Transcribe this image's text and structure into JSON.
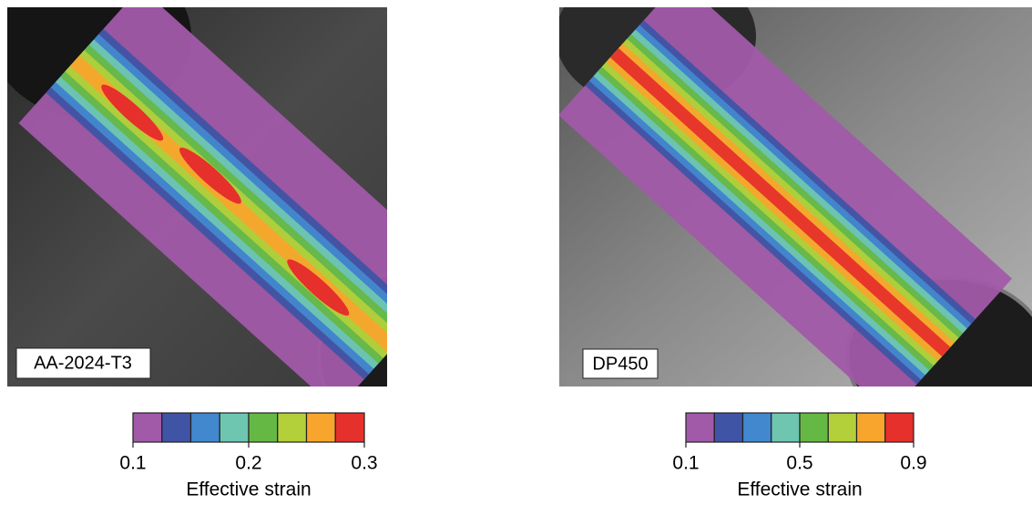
{
  "panels": [
    {
      "label": "AA-2024-T3",
      "colorbar": {
        "colors": [
          "#a15aa8",
          "#3f54a5",
          "#4288cf",
          "#6fc6b0",
          "#66b845",
          "#b3cf3a",
          "#f7a52c",
          "#e6302b"
        ],
        "lim": [
          0.1,
          0.3
        ],
        "ticks": [
          0.1,
          0.2,
          0.3
        ],
        "label": "Effective strain"
      }
    },
    {
      "label": "DP450",
      "colorbar": {
        "colors": [
          "#a15aa8",
          "#3f54a5",
          "#4288cf",
          "#6fc6b0",
          "#66b845",
          "#b3cf3a",
          "#f7a52c",
          "#e6302b"
        ],
        "lim": [
          0.1,
          0.9
        ],
        "ticks": [
          0.1,
          0.5,
          0.9
        ],
        "label": "Effective strain"
      }
    }
  ]
}
